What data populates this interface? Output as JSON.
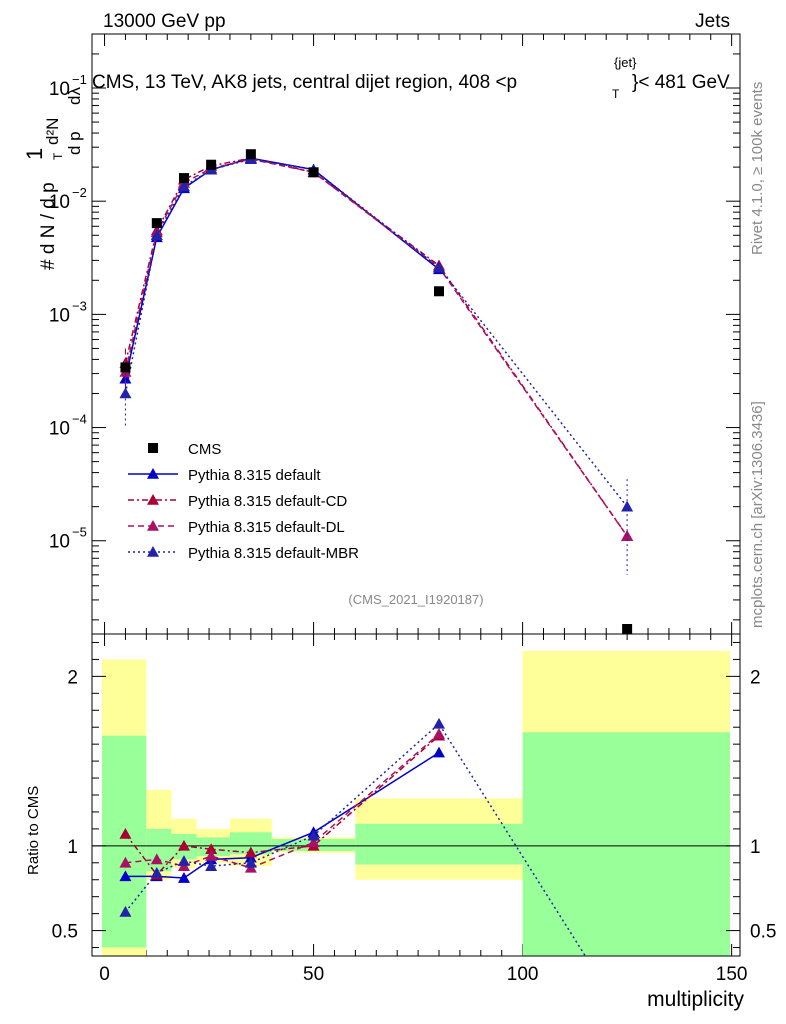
{
  "header": {
    "energy": "13000 GeV pp",
    "category": "Jets",
    "title_part1": "CMS, 13 TeV, AK8 jets, central dijet region, 408 <p",
    "title_sub": "T",
    "title_sup": "{jet}",
    "title_part2": "}< 481 GeV",
    "ylabel_top": "1",
    "ylabel_main": "# d N / d p",
    "ylabel_sub": "T",
    "ylabel_right_num": "d²N",
    "ylabel_right_den": "d p",
    "ylabel_right_den2": " dλ",
    "right_label_1": "Rivet 4.1.0, ≥ 100k events",
    "right_label_2": "mcplots.cern.ch [arXiv:1306.3436]",
    "watermark": "(CMS_2021_I1920187)",
    "ratio_ylabel": "Ratio to CMS",
    "xlabel": "multiplicity"
  },
  "chart_data": {
    "type": "line",
    "x_axis": {
      "label": "multiplicity",
      "range": [
        -3,
        152
      ],
      "ticks": [
        0,
        50,
        100,
        150
      ]
    },
    "main_y_axis": {
      "scale": "log",
      "range": [
        1.5e-06,
        0.3
      ],
      "tick_labels": [
        "10^{-5}",
        "10^{-4}",
        "10^{-3}",
        "10^{-2}",
        "10^{-1}"
      ],
      "tick_values": [
        1e-05,
        0.0001,
        0.001,
        0.01,
        0.1
      ]
    },
    "ratio_y_axis": {
      "range": [
        0.35,
        2.25
      ],
      "ticks": [
        0.5,
        1,
        2
      ],
      "tick_labels": [
        "0.5",
        "1",
        "2"
      ]
    },
    "data_series": {
      "name": "CMS",
      "color": "#000000",
      "points": [
        {
          "x": 5,
          "y": 0.00034
        },
        {
          "x": 12.5,
          "y": 0.0064
        },
        {
          "x": 19,
          "y": 0.016
        },
        {
          "x": 25.5,
          "y": 0.021
        },
        {
          "x": 35,
          "y": 0.026
        },
        {
          "x": 50,
          "y": 0.018
        },
        {
          "x": 80,
          "y": 0.0016
        },
        {
          "x": 125,
          "y": 1.6e-06
        }
      ]
    },
    "series": [
      {
        "name": "Pythia 8.315 default",
        "color": "#0000cc",
        "dash": "solid",
        "main": [
          [
            5,
            0.00027
          ],
          [
            12.5,
            0.0048
          ],
          [
            19,
            0.013
          ],
          [
            25.5,
            0.019
          ],
          [
            35,
            0.024
          ],
          [
            50,
            0.019
          ],
          [
            80,
            0.0025
          ]
        ],
        "main_err": [
          6e-05,
          0,
          0,
          0,
          0,
          0,
          0
        ],
        "ratio": [
          [
            5,
            0.82
          ],
          [
            12.5,
            0.82
          ],
          [
            19,
            0.81
          ],
          [
            25.5,
            0.92
          ],
          [
            35,
            0.93
          ],
          [
            50,
            1.08
          ],
          [
            80,
            1.55
          ]
        ]
      },
      {
        "name": "Pythia 8.315 default-CD",
        "color": "#aa0033",
        "dash": "6,3,2,3",
        "main": [
          [
            5,
            0.00037
          ],
          [
            12.5,
            0.0055
          ],
          [
            19,
            0.0155
          ],
          [
            25.5,
            0.0205
          ],
          [
            35,
            0.024
          ],
          [
            50,
            0.018
          ],
          [
            80,
            0.0027
          ],
          [
            125,
            1.1e-05
          ]
        ],
        "main_err": [
          0.00013,
          0,
          0,
          0,
          0,
          0,
          0,
          0
        ],
        "ratio": [
          [
            5,
            1.07
          ],
          [
            12.5,
            0.83
          ],
          [
            19,
            1.0
          ],
          [
            25.5,
            0.98
          ],
          [
            35,
            0.96
          ],
          [
            50,
            1.0
          ],
          [
            80,
            1.65
          ]
        ]
      },
      {
        "name": "Pythia 8.315 default-DL",
        "color": "#aa1166",
        "dash": "6,4",
        "main": [
          [
            5,
            0.00031
          ],
          [
            12.5,
            0.0053
          ],
          [
            19,
            0.0145
          ],
          [
            25.5,
            0.0195
          ],
          [
            35,
            0.0235
          ],
          [
            50,
            0.018
          ],
          [
            80,
            0.0026
          ],
          [
            125,
            1.1e-05
          ]
        ],
        "main_err": [
          8e-05,
          0,
          0,
          0,
          0,
          0,
          0,
          0
        ],
        "ratio": [
          [
            5,
            0.9
          ],
          [
            12.5,
            0.92
          ],
          [
            19,
            0.88
          ],
          [
            25.5,
            0.94
          ],
          [
            35,
            0.87
          ],
          [
            50,
            1.02
          ],
          [
            80,
            1.66
          ]
        ]
      },
      {
        "name": "Pythia 8.315 default-MBR",
        "color": "#2222aa",
        "dash": "2,3",
        "main": [
          [
            5,
            0.0002
          ],
          [
            12.5,
            0.005
          ],
          [
            19,
            0.0135
          ],
          [
            25.5,
            0.019
          ],
          [
            35,
            0.0235
          ],
          [
            50,
            0.019
          ],
          [
            80,
            0.0026
          ],
          [
            125,
            2e-05
          ]
        ],
        "main_err": [
          0.0001,
          0,
          0,
          0,
          0,
          0,
          0,
          1.5e-05
        ],
        "ratio": [
          [
            5,
            0.61
          ],
          [
            12.5,
            0.84
          ],
          [
            19,
            0.91
          ],
          [
            25.5,
            0.88
          ],
          [
            35,
            0.9
          ],
          [
            50,
            1.06
          ],
          [
            80,
            1.72
          ],
          [
            115,
            0.35
          ]
        ]
      }
    ],
    "uncertainty_bands": [
      {
        "x0": -1,
        "x1": 10,
        "green": [
          0.4,
          1.65
        ],
        "yellow": [
          0.35,
          2.1
        ]
      },
      {
        "x0": 10,
        "x1": 16,
        "green": [
          0.85,
          1.1
        ],
        "yellow": [
          0.8,
          1.33
        ]
      },
      {
        "x0": 16,
        "x1": 22,
        "green": [
          0.92,
          1.07
        ],
        "yellow": [
          0.87,
          1.16
        ]
      },
      {
        "x0": 22,
        "x1": 30,
        "green": [
          0.94,
          1.05
        ],
        "yellow": [
          0.9,
          1.1
        ]
      },
      {
        "x0": 30,
        "x1": 40,
        "green": [
          0.95,
          1.08
        ],
        "yellow": [
          0.88,
          1.16
        ]
      },
      {
        "x0": 40,
        "x1": 60,
        "green": [
          0.97,
          1.04
        ],
        "yellow": [
          0.96,
          1.05
        ]
      },
      {
        "x0": 60,
        "x1": 100,
        "green": [
          0.89,
          1.13
        ],
        "yellow": [
          0.8,
          1.28
        ]
      },
      {
        "x0": 100,
        "x1": 150,
        "green": [
          0.35,
          1.67
        ],
        "yellow": [
          0.35,
          2.15
        ]
      }
    ]
  }
}
